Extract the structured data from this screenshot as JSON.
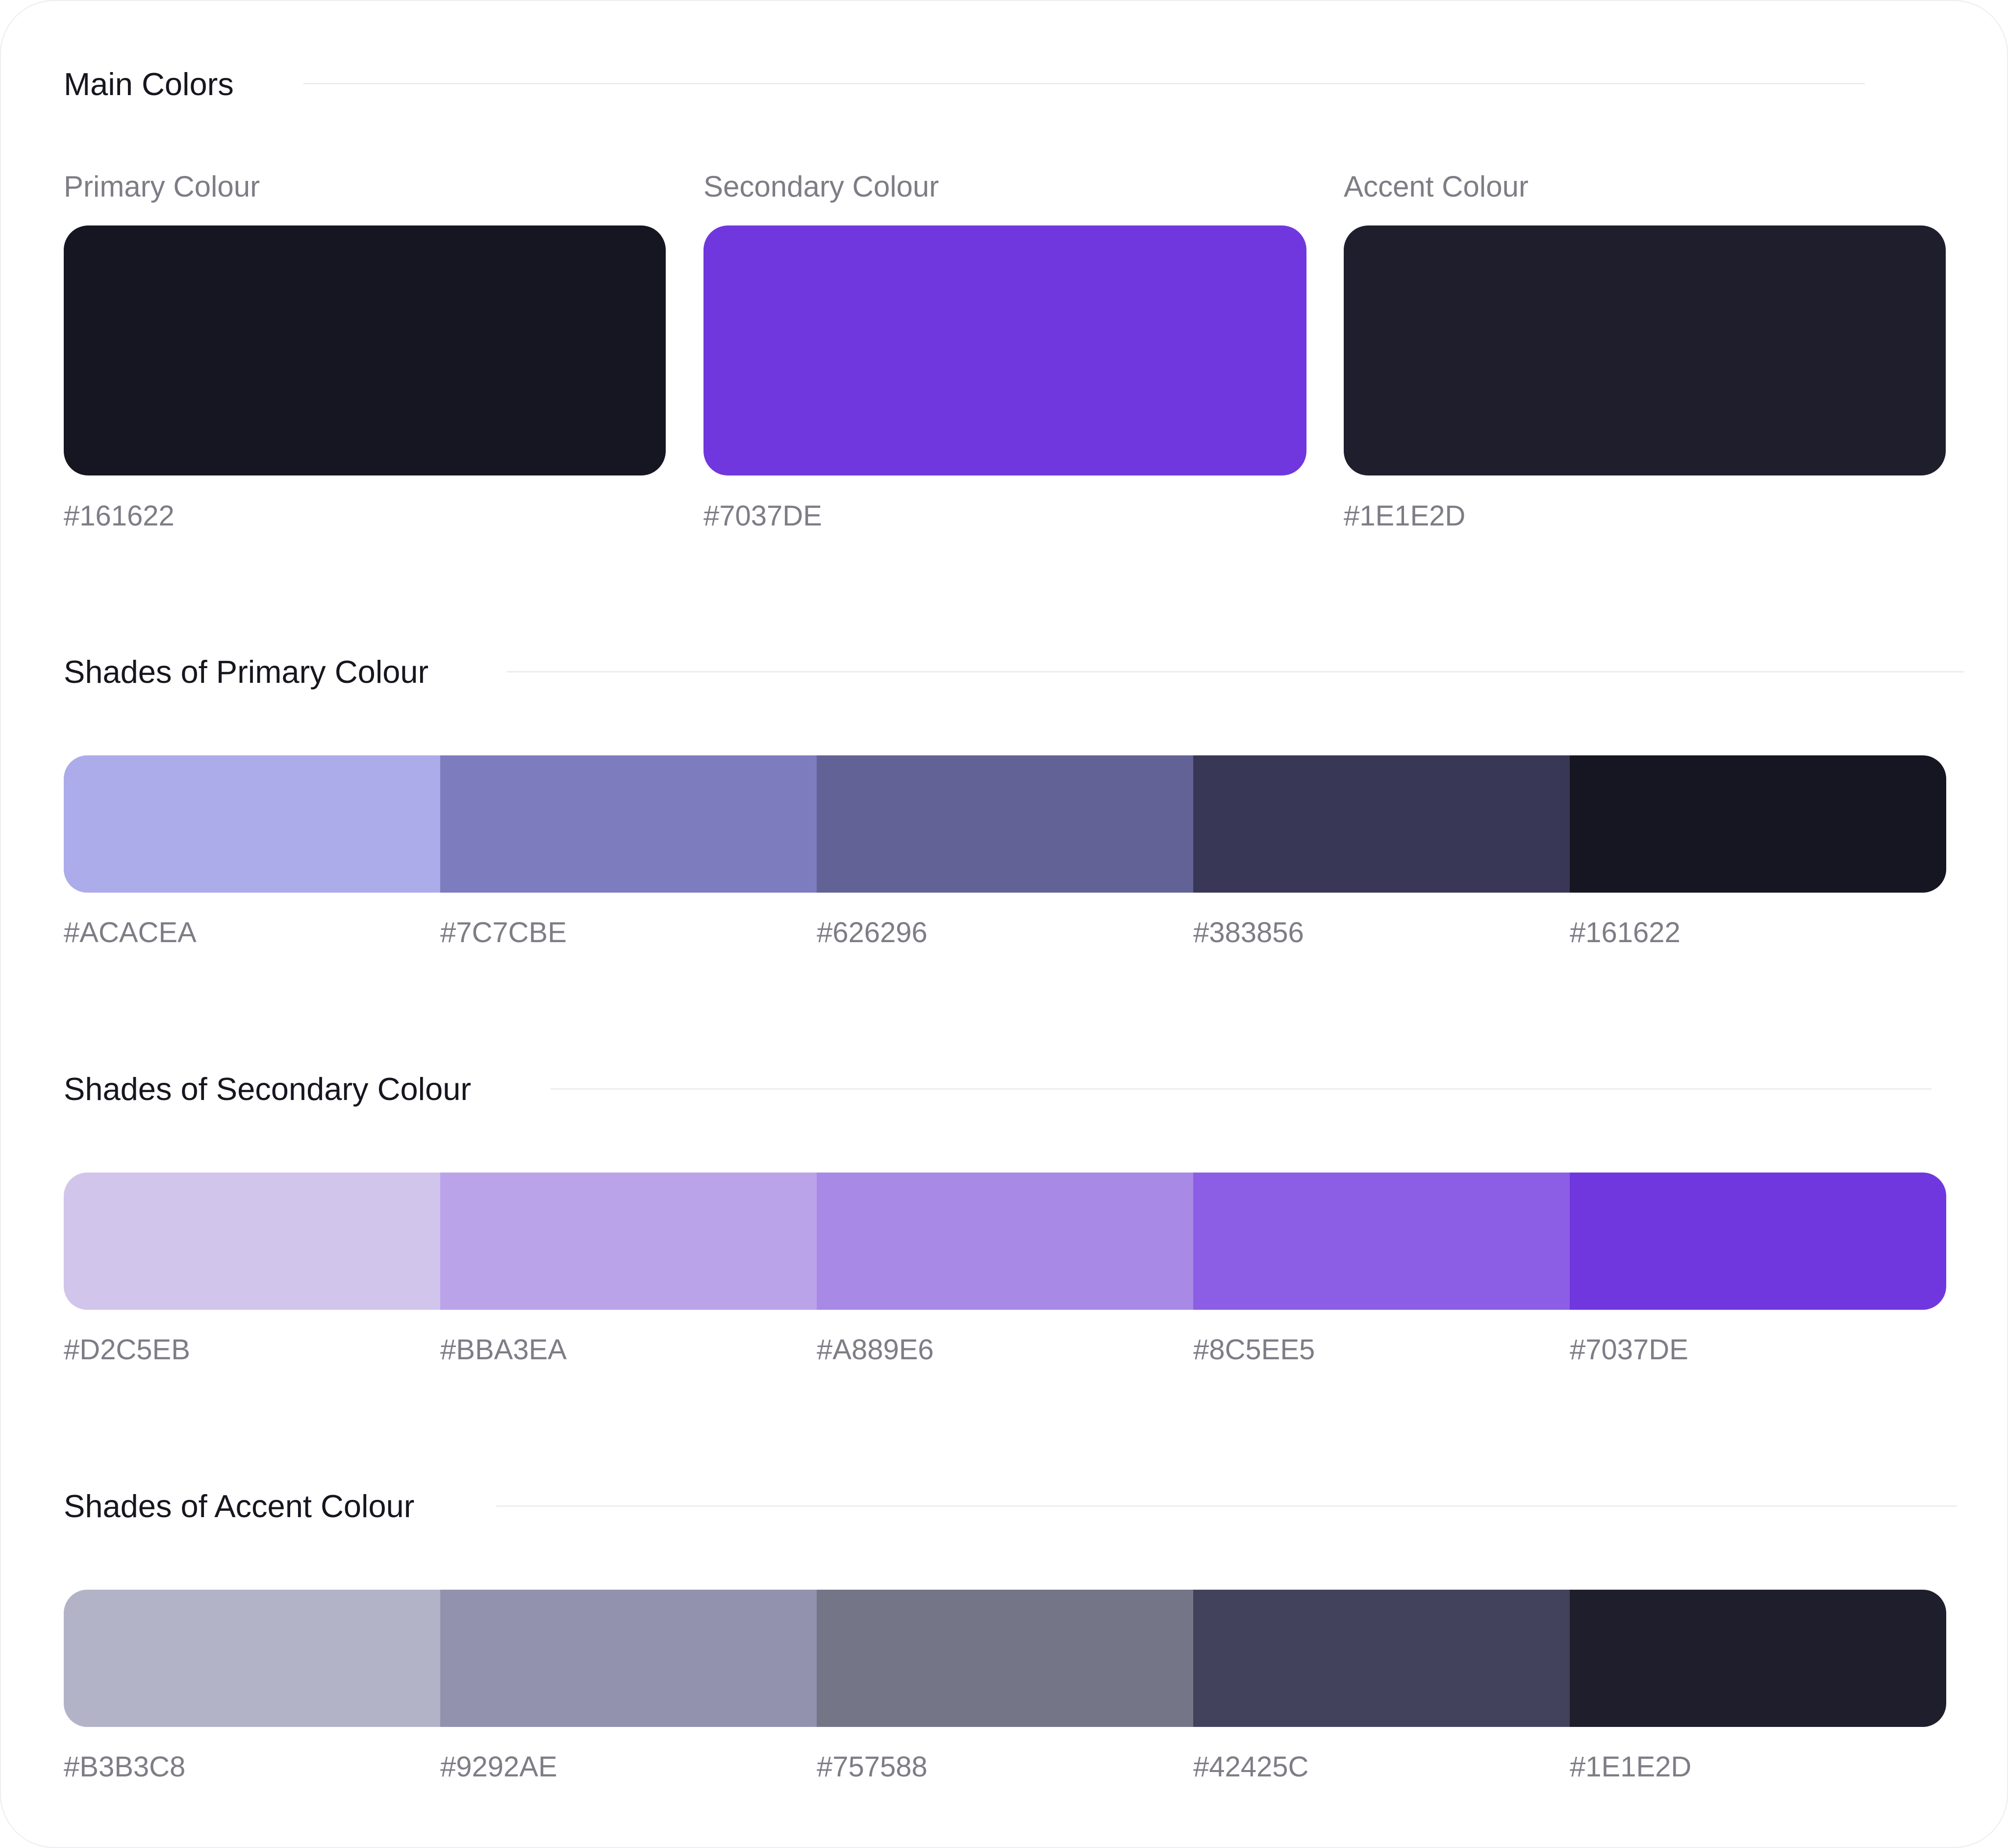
{
  "main": {
    "title": "Main Colors",
    "swatches": [
      {
        "label": "Primary Colour",
        "hex": "#161622",
        "color": "#161622"
      },
      {
        "label": "Secondary Colour",
        "hex": "#7037DE",
        "color": "#7037DE"
      },
      {
        "label": "Accent Colour",
        "hex": "#1E1E2D",
        "color": "#1E1E2D"
      }
    ]
  },
  "primary_shades": {
    "title": "Shades of Primary Colour",
    "shades": [
      {
        "hex": "#ACACEA",
        "color": "#ACACEA"
      },
      {
        "hex": "#7C7CBE",
        "color": "#7C7CBE"
      },
      {
        "hex": "#626296",
        "color": "#626296"
      },
      {
        "hex": "#383856",
        "color": "#383856"
      },
      {
        "hex": "#161622",
        "color": "#161622"
      }
    ]
  },
  "secondary_shades": {
    "title": "Shades of Secondary Colour",
    "shades": [
      {
        "hex": "#D2C5EB",
        "color": "#D2C5EB"
      },
      {
        "hex": "#BBA3EA",
        "color": "#BBA3EA"
      },
      {
        "hex": "#A889E6",
        "color": "#A889E6"
      },
      {
        "hex": "#8C5EE5",
        "color": "#8C5EE5"
      },
      {
        "hex": "#7037DE",
        "color": "#7037DE"
      }
    ]
  },
  "accent_shades": {
    "title": "Shades of Accent Colour",
    "shades": [
      {
        "hex": "#B3B3C8",
        "color": "#B3B3C8"
      },
      {
        "hex": "#9292AE",
        "color": "#9292AE"
      },
      {
        "hex": "#757588",
        "color": "#757588"
      },
      {
        "hex": "#42425C",
        "color": "#42425C"
      },
      {
        "hex": "#1E1E2D",
        "color": "#1E1E2D"
      }
    ]
  }
}
